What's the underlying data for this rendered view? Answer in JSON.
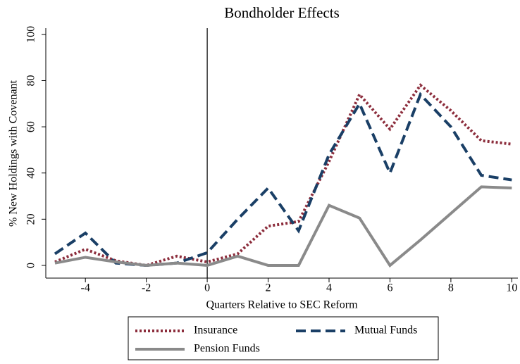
{
  "chart_data": {
    "type": "line",
    "title": "Bondholder Effects",
    "xlabel": "Quarters Relative to SEC Reform",
    "ylabel": "% New Holdings with Covenant",
    "x": [
      -5,
      -4,
      -3,
      -2,
      -1,
      0,
      1,
      2,
      3,
      4,
      5,
      6,
      7,
      8,
      9,
      10
    ],
    "series": [
      {
        "name": "Insurance",
        "color": "#8c2d3c",
        "dash": "dotted",
        "values": [
          1.5,
          7,
          2,
          0,
          4,
          1.5,
          5,
          17,
          19,
          45,
          74,
          59,
          78,
          67,
          54,
          52.5
        ]
      },
      {
        "name": "Mutual Funds",
        "color": "#1a3f66",
        "dash": "dashed",
        "values": [
          5,
          14,
          1,
          0,
          1,
          5.5,
          20,
          33.5,
          15,
          48,
          70,
          40,
          74,
          60,
          39,
          37
        ]
      },
      {
        "name": "Pension Funds",
        "color": "#8a8a8a",
        "dash": "solid",
        "values": [
          1,
          3.5,
          1.5,
          0,
          1,
          0,
          4,
          0,
          0,
          26,
          20.5,
          0,
          11,
          22.5,
          34,
          33.5
        ]
      }
    ],
    "vline": 0,
    "xlim": [
      -5.3,
      10.2
    ],
    "xticks": [
      -4,
      -2,
      0,
      2,
      4,
      6,
      8,
      10
    ],
    "ylim": [
      -5.5,
      102.7
    ],
    "yticks": [
      0,
      20,
      40,
      60,
      80,
      100
    ],
    "legend": "bottom"
  }
}
